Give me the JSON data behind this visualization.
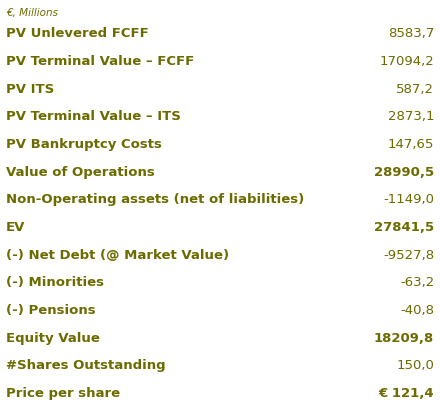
{
  "title": "€, Millions",
  "rows": [
    {
      "label": "PV Unlevered FCFF",
      "value": "8583,7",
      "bold_label": true,
      "bold_value": false
    },
    {
      "label": "PV Terminal Value – FCFF",
      "value": "17094,2",
      "bold_label": true,
      "bold_value": false
    },
    {
      "label": "PV ITS",
      "value": "587,2",
      "bold_label": true,
      "bold_value": false
    },
    {
      "label": "PV Terminal Value – ITS",
      "value": "2873,1",
      "bold_label": true,
      "bold_value": false
    },
    {
      "label": "PV Bankruptcy Costs",
      "value": "147,65",
      "bold_label": true,
      "bold_value": false
    },
    {
      "label": "Value of Operations",
      "value": "28990,5",
      "bold_label": true,
      "bold_value": true
    },
    {
      "label": "Non-Operating assets (net of liabilities)",
      "value": "-1149,0",
      "bold_label": true,
      "bold_value": false
    },
    {
      "label": "EV",
      "value": "27841,5",
      "bold_label": true,
      "bold_value": true
    },
    {
      "label": "(-) Net Debt (@ Market Value)",
      "value": "-9527,8",
      "bold_label": true,
      "bold_value": false
    },
    {
      "label": "(-) Minorities",
      "value": "-63,2",
      "bold_label": true,
      "bold_value": false
    },
    {
      "label": "(-) Pensions",
      "value": "-40,8",
      "bold_label": true,
      "bold_value": false
    },
    {
      "label": "Equity Value",
      "value": "18209,8",
      "bold_label": true,
      "bold_value": true
    },
    {
      "label": "#Shares Outstanding",
      "value": "150,0",
      "bold_label": true,
      "bold_value": false
    },
    {
      "label": "Price per share",
      "value": "€ 121,4",
      "bold_label": true,
      "bold_value": true
    }
  ],
  "label_color": "#6b6b00",
  "olive_color": "#6b6b00",
  "background_color": "#ffffff",
  "header_color": "#6b6b00",
  "font_size": 9.5,
  "col_split": 0.72
}
